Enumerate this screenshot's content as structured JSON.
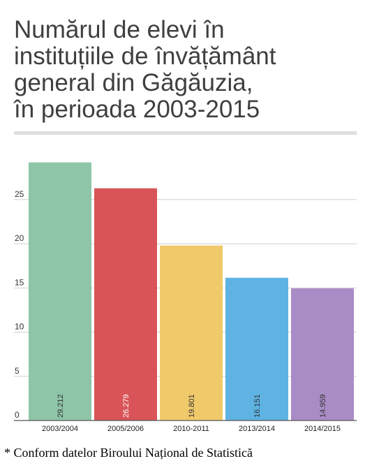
{
  "title_lines": [
    "Numărul de elevi în",
    "instituțiile de învățământ",
    "general din Găgăuzia,",
    "în perioada 2003-2015"
  ],
  "footnote": "* Conform datelor Biroului Național de Statistică",
  "chart_data": {
    "type": "bar",
    "title": "Numărul de elevi în instituțiile de învățământ general din Găgăuzia, în perioada 2003-2015",
    "categories": [
      "2003/2004",
      "2005/2006",
      "2010-2011",
      "2013/2014",
      "2014/2015"
    ],
    "values": [
      29.212,
      26.279,
      19.801,
      16.151,
      14.959
    ],
    "value_labels": [
      "29.212",
      "26.279",
      "19.801",
      "16.151",
      "14.959"
    ],
    "colors": [
      "#8ec5a8",
      "#d95458",
      "#f0c96a",
      "#5eb3e3",
      "#a98cc6"
    ],
    "value_label_colors": [
      "#333333",
      "#ffffff",
      "#333333",
      "#333333",
      "#333333"
    ],
    "yticks": [
      0,
      5,
      10,
      15,
      20,
      25
    ],
    "ylim": [
      0,
      30
    ],
    "grid": true,
    "legend": "none"
  }
}
